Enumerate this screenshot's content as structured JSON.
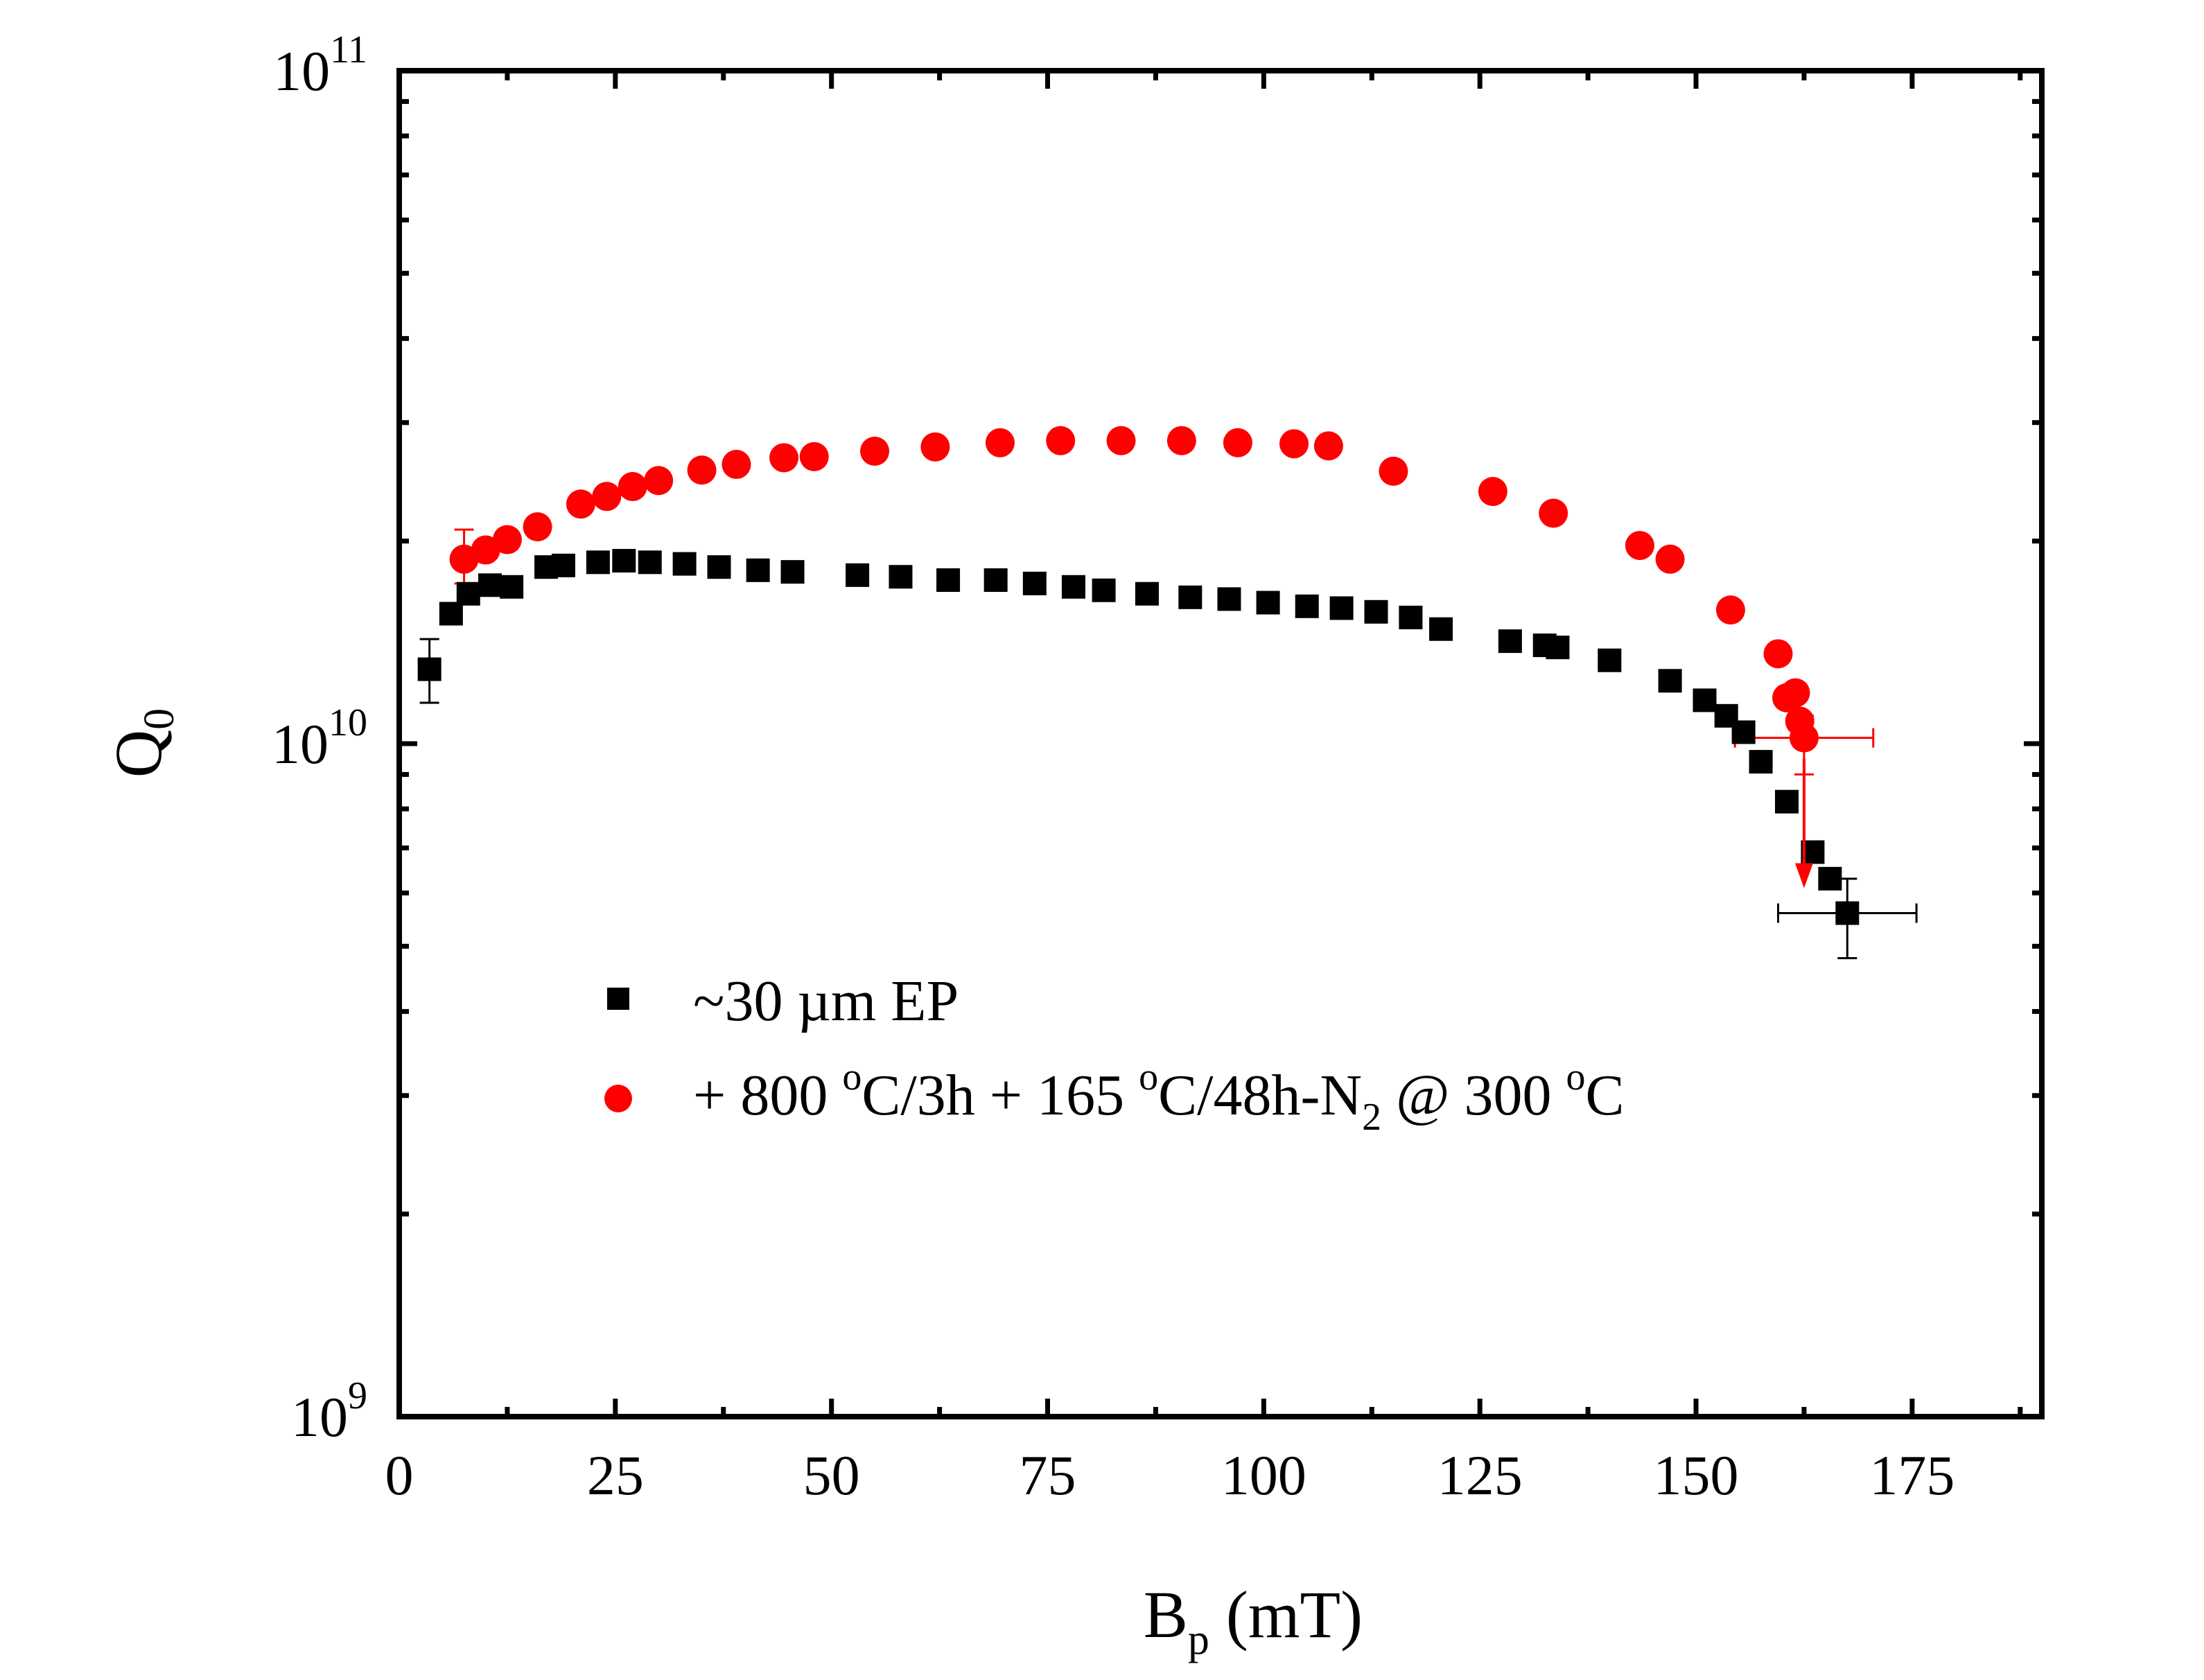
{
  "chart_data": {
    "type": "scatter",
    "title": "",
    "xlabel": {
      "main": "B",
      "sub": "p",
      "rest": " (mT)"
    },
    "ylabel": {
      "main": "Q",
      "sub": "0"
    },
    "xlim": [
      0,
      190
    ],
    "ylim": [
      1000000000,
      100000000000
    ],
    "yscale": "log",
    "grid": false,
    "x_ticks": [
      0,
      25,
      50,
      75,
      100,
      125,
      150,
      175
    ],
    "x_tick_labels": [
      "0",
      "25",
      "50",
      "75",
      "100",
      "125",
      "150",
      "175"
    ],
    "y_ticks": [
      {
        "value": 1000000000,
        "base": "10",
        "exp": "9"
      },
      {
        "value": 10000000000,
        "base": "10",
        "exp": "10"
      },
      {
        "value": 100000000000,
        "base": "10",
        "exp": "11"
      }
    ],
    "legend_position": "lower-center",
    "series": [
      {
        "name": "~30 µm EP",
        "legend_parts": [
          {
            "text": " ~30 µm EP",
            "style": "normal"
          }
        ],
        "marker": "square",
        "color": "#000000",
        "x": [
          3.5,
          6,
          8,
          10.5,
          13,
          17,
          19,
          23,
          26,
          29,
          33,
          37,
          41.5,
          45.5,
          53,
          58,
          63.5,
          69,
          73.5,
          78,
          81.5,
          86.5,
          91.5,
          96,
          100.5,
          105,
          109,
          113,
          117,
          120.5,
          128.5,
          132.5,
          134,
          140,
          147,
          151,
          153.5,
          155.5,
          157.5,
          160.5,
          163.5,
          165.5,
          167.5
        ],
        "y": [
          12900000000.0,
          15600000000.0,
          16700000000.0,
          17200000000.0,
          17100000000.0,
          18300000000.0,
          18400000000.0,
          18600000000.0,
          18700000000.0,
          18600000000.0,
          18500000000.0,
          18300000000.0,
          18100000000.0,
          18000000000.0,
          17800000000.0,
          17700000000.0,
          17500000000.0,
          17500000000.0,
          17300000000.0,
          17100000000.0,
          16900000000.0,
          16700000000.0,
          16500000000.0,
          16400000000.0,
          16200000000.0,
          16000000000.0,
          15900000000.0,
          15700000000.0,
          15400000000.0,
          14800000000.0,
          14200000000.0,
          14000000000.0,
          13900000000.0,
          13300000000.0,
          12400000000.0,
          11600000000.0,
          11000000000.0,
          10400000000.0,
          9400000000.0,
          8200000000.0,
          6900000000.0,
          6300000000.0,
          5600000000.0
        ],
        "error_bars": [
          {
            "x": 3.5,
            "y": 12900000000.0,
            "y_low": 11500000000.0,
            "y_high": 14300000000.0
          },
          {
            "x": 167.5,
            "y": 5600000000.0,
            "x_low": 159.5,
            "x_high": 175.5,
            "y_low": 4800000000.0,
            "y_high": 6300000000.0
          }
        ]
      },
      {
        "name": "+ 800 ºC/3h + 165 ºC/48h-N2 @ 300 ºC",
        "legend_parts": [
          {
            "text": "+ 800 ",
            "style": "normal"
          },
          {
            "text": "o",
            "style": "sup"
          },
          {
            "text": "C/3h + 165 ",
            "style": "normal"
          },
          {
            "text": "o",
            "style": "sup"
          },
          {
            "text": "C/48h-N",
            "style": "normal"
          },
          {
            "text": "2",
            "style": "sub"
          },
          {
            "text": " @ 300 ",
            "style": "normal"
          },
          {
            "text": "o",
            "style": "sup"
          },
          {
            "text": "C",
            "style": "normal"
          }
        ],
        "marker": "circle",
        "color": "#ff0000",
        "x": [
          7.5,
          10,
          12.5,
          16,
          21,
          24,
          27,
          30,
          35,
          39,
          44.5,
          48,
          55,
          62,
          69.5,
          76.5,
          83.5,
          90.5,
          97,
          103.5,
          107.5,
          115,
          126.5,
          133.5,
          143.5,
          147,
          154,
          159.5,
          160.5,
          161.5,
          162,
          162.5
        ],
        "y": [
          18800000000.0,
          19400000000.0,
          20100000000.0,
          21000000000.0,
          22700000000.0,
          23300000000.0,
          24100000000.0,
          24600000000.0,
          25500000000.0,
          26000000000.0,
          26600000000.0,
          26700000000.0,
          27200000000.0,
          27600000000.0,
          28000000000.0,
          28200000000.0,
          28200000000.0,
          28200000000.0,
          28000000000.0,
          27900000000.0,
          27700000000.0,
          25400000000.0,
          23700000000.0,
          22000000000.0,
          19700000000.0,
          18800000000.0,
          15800000000.0,
          13600000000.0,
          11700000000.0,
          11900000000.0,
          10800000000.0,
          10200000000.0
        ],
        "error_bars": [
          {
            "x": 7.5,
            "y": 18800000000.0,
            "y_low": 17300000000.0,
            "y_high": 20800000000.0
          },
          {
            "x": 162.5,
            "y": 10200000000.0,
            "x_low": 154.5,
            "x_high": 170.5,
            "y_low": 9000000000.0,
            "y_high": 11000000000.0
          }
        ],
        "arrow": {
          "x": 162.5,
          "y_start": 9500000000.0,
          "y_end": 6100000000.0
        }
      }
    ]
  }
}
